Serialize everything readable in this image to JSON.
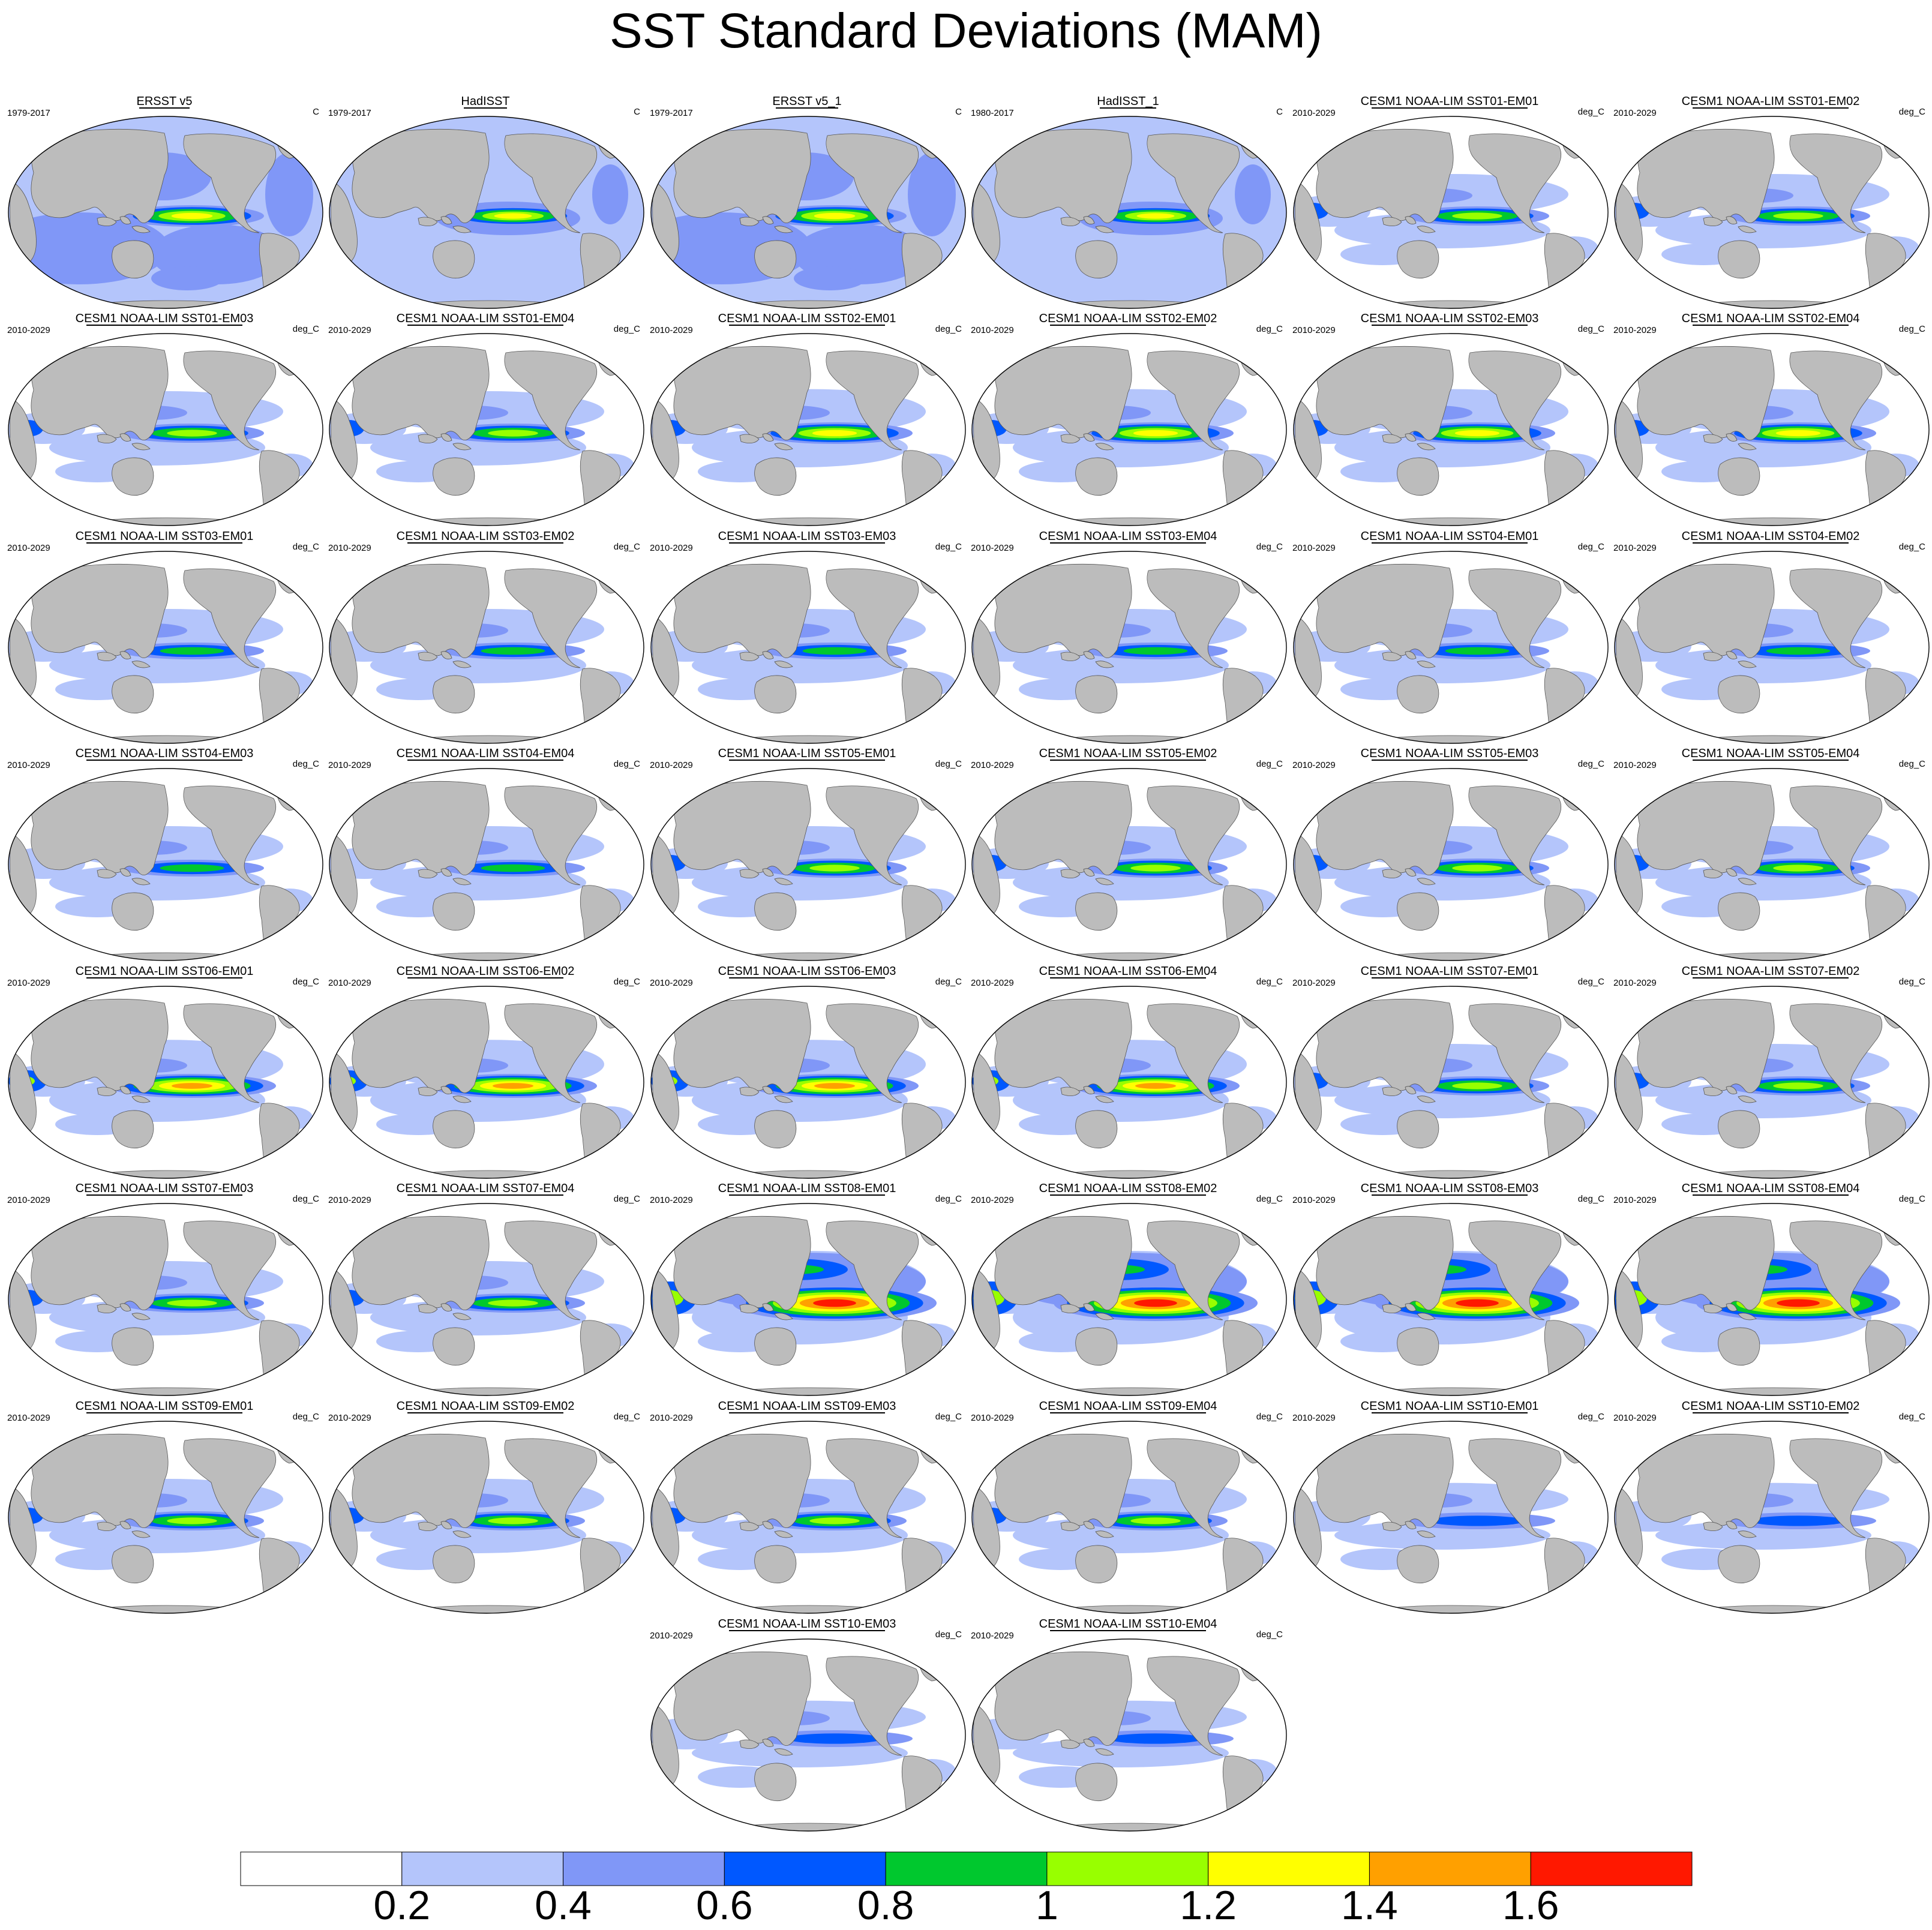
{
  "title": "SST Standard Deviations (MAM)",
  "colors": {
    "land": "#bcbcbc",
    "ocean": "#ffffff",
    "levels": [
      "#ffffff",
      "#b4c5fb",
      "#8097f7",
      "#0058ff",
      "#00c82e",
      "#98ff00",
      "#ffff00",
      "#ffa000",
      "#ff1800"
    ]
  },
  "panels": [
    {
      "title": "ERSST v5",
      "period": "1979-2017",
      "units": "C",
      "kind": "obs"
    },
    {
      "title": "HadISST",
      "period": "1979-2017",
      "units": "C",
      "kind": "obs2"
    },
    {
      "title": "ERSST v5_1",
      "period": "1979-2017",
      "units": "C",
      "kind": "obs"
    },
    {
      "title": "HadISST_1",
      "period": "1980-2017",
      "units": "C",
      "kind": "obs2"
    },
    {
      "title": "CESM1 NOAA-LIM SST01-EM01",
      "period": "2010-2029",
      "units": "deg_C",
      "kind": "m2"
    },
    {
      "title": "CESM1 NOAA-LIM SST01-EM02",
      "period": "2010-2029",
      "units": "deg_C",
      "kind": "m2"
    },
    {
      "title": "CESM1 NOAA-LIM SST01-EM03",
      "period": "2010-2029",
      "units": "deg_C",
      "kind": "m2"
    },
    {
      "title": "CESM1 NOAA-LIM SST01-EM04",
      "period": "2010-2029",
      "units": "deg_C",
      "kind": "m2"
    },
    {
      "title": "CESM1 NOAA-LIM SST02-EM01",
      "period": "2010-2029",
      "units": "deg_C",
      "kind": "m3"
    },
    {
      "title": "CESM1 NOAA-LIM SST02-EM02",
      "period": "2010-2029",
      "units": "deg_C",
      "kind": "m3"
    },
    {
      "title": "CESM1 NOAA-LIM SST02-EM03",
      "period": "2010-2029",
      "units": "deg_C",
      "kind": "m3"
    },
    {
      "title": "CESM1 NOAA-LIM SST02-EM04",
      "period": "2010-2029",
      "units": "deg_C",
      "kind": "m3"
    },
    {
      "title": "CESM1 NOAA-LIM SST03-EM01",
      "period": "2010-2029",
      "units": "deg_C",
      "kind": "m1"
    },
    {
      "title": "CESM1 NOAA-LIM SST03-EM02",
      "period": "2010-2029",
      "units": "deg_C",
      "kind": "m1"
    },
    {
      "title": "CESM1 NOAA-LIM SST03-EM03",
      "period": "2010-2029",
      "units": "deg_C",
      "kind": "m1"
    },
    {
      "title": "CESM1 NOAA-LIM SST03-EM04",
      "period": "2010-2029",
      "units": "deg_C",
      "kind": "m1"
    },
    {
      "title": "CESM1 NOAA-LIM SST04-EM01",
      "period": "2010-2029",
      "units": "deg_C",
      "kind": "m1"
    },
    {
      "title": "CESM1 NOAA-LIM SST04-EM02",
      "period": "2010-2029",
      "units": "deg_C",
      "kind": "m1"
    },
    {
      "title": "CESM1 NOAA-LIM SST04-EM03",
      "period": "2010-2029",
      "units": "deg_C",
      "kind": "m1"
    },
    {
      "title": "CESM1 NOAA-LIM SST04-EM04",
      "period": "2010-2029",
      "units": "deg_C",
      "kind": "m1"
    },
    {
      "title": "CESM1 NOAA-LIM SST05-EM01",
      "period": "2010-2029",
      "units": "deg_C",
      "kind": "m2"
    },
    {
      "title": "CESM1 NOAA-LIM SST05-EM02",
      "period": "2010-2029",
      "units": "deg_C",
      "kind": "m2"
    },
    {
      "title": "CESM1 NOAA-LIM SST05-EM03",
      "period": "2010-2029",
      "units": "deg_C",
      "kind": "m2"
    },
    {
      "title": "CESM1 NOAA-LIM SST05-EM04",
      "period": "2010-2029",
      "units": "deg_C",
      "kind": "m2"
    },
    {
      "title": "CESM1 NOAA-LIM SST06-EM01",
      "period": "2010-2029",
      "units": "deg_C",
      "kind": "m4"
    },
    {
      "title": "CESM1 NOAA-LIM SST06-EM02",
      "period": "2010-2029",
      "units": "deg_C",
      "kind": "m4"
    },
    {
      "title": "CESM1 NOAA-LIM SST06-EM03",
      "period": "2010-2029",
      "units": "deg_C",
      "kind": "m4"
    },
    {
      "title": "CESM1 NOAA-LIM SST06-EM04",
      "period": "2010-2029",
      "units": "deg_C",
      "kind": "m4"
    },
    {
      "title": "CESM1 NOAA-LIM SST07-EM01",
      "period": "2010-2029",
      "units": "deg_C",
      "kind": "m2"
    },
    {
      "title": "CESM1 NOAA-LIM SST07-EM02",
      "period": "2010-2029",
      "units": "deg_C",
      "kind": "m2"
    },
    {
      "title": "CESM1 NOAA-LIM SST07-EM03",
      "period": "2010-2029",
      "units": "deg_C",
      "kind": "m2"
    },
    {
      "title": "CESM1 NOAA-LIM SST07-EM04",
      "period": "2010-2029",
      "units": "deg_C",
      "kind": "m2"
    },
    {
      "title": "CESM1 NOAA-LIM SST08-EM01",
      "period": "2010-2029",
      "units": "deg_C",
      "kind": "m5"
    },
    {
      "title": "CESM1 NOAA-LIM SST08-EM02",
      "period": "2010-2029",
      "units": "deg_C",
      "kind": "m5"
    },
    {
      "title": "CESM1 NOAA-LIM SST08-EM03",
      "period": "2010-2029",
      "units": "deg_C",
      "kind": "m5"
    },
    {
      "title": "CESM1 NOAA-LIM SST08-EM04",
      "period": "2010-2029",
      "units": "deg_C",
      "kind": "m5"
    },
    {
      "title": "CESM1 NOAA-LIM SST09-EM01",
      "period": "2010-2029",
      "units": "deg_C",
      "kind": "m2"
    },
    {
      "title": "CESM1 NOAA-LIM SST09-EM02",
      "period": "2010-2029",
      "units": "deg_C",
      "kind": "m2"
    },
    {
      "title": "CESM1 NOAA-LIM SST09-EM03",
      "period": "2010-2029",
      "units": "deg_C",
      "kind": "m2"
    },
    {
      "title": "CESM1 NOAA-LIM SST09-EM04",
      "period": "2010-2029",
      "units": "deg_C",
      "kind": "m2"
    },
    {
      "title": "CESM1 NOAA-LIM SST10-EM01",
      "period": "2010-2029",
      "units": "deg_C",
      "kind": "m0"
    },
    {
      "title": "CESM1 NOAA-LIM SST10-EM02",
      "period": "2010-2029",
      "units": "deg_C",
      "kind": "m0"
    },
    {
      "title": "CESM1 NOAA-LIM SST10-EM03",
      "period": "2010-2029",
      "units": "deg_C",
      "kind": "m0"
    },
    {
      "title": "CESM1 NOAA-LIM SST10-EM04",
      "period": "2010-2029",
      "units": "deg_C",
      "kind": "m0"
    }
  ],
  "chart_data": {
    "type": "heatmap",
    "title": "SST Standard Deviations (MAM)",
    "colorbar": {
      "labels": [
        "0.2",
        "0.4",
        "0.6",
        "0.8",
        "1",
        "1.2",
        "1.4",
        "1.6"
      ],
      "levels": [
        0.2,
        0.4,
        0.6,
        0.8,
        1.0,
        1.2,
        1.4,
        1.6
      ],
      "orientation": "horizontal",
      "placement": "bottom"
    }
  }
}
